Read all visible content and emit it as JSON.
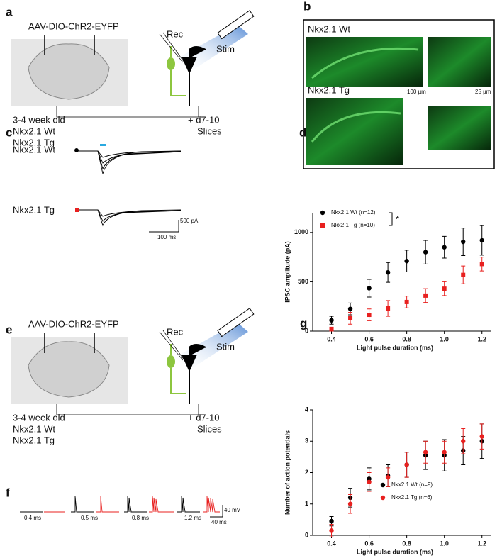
{
  "panel_labels": [
    "a",
    "b",
    "c",
    "d",
    "e",
    "f",
    "g"
  ],
  "schematic_a": {
    "virus": "AAV-DIO-ChR2-EYFP",
    "rec": "Rec",
    "stim": "Stim",
    "age": "3-4 week old",
    "wt": "Nkx2.1 Wt",
    "tg": "Nkx2.1 Tg",
    "days": "+ d7-10",
    "slices": "Slices"
  },
  "schematic_e": {
    "virus": "AAV-DIO-ChR2-EYFP",
    "rec": "Rec",
    "stim": "Stim",
    "age": "3-4 week old",
    "wt": "Nkx2.1 Wt",
    "tg": "Nkx2.1 Tg",
    "days": "+ d7-10",
    "slices": "Slices"
  },
  "panel_b": {
    "wt": "Nkx2.1 Wt",
    "tg": "Nkx2.1 Tg",
    "scale_1": "100 µm",
    "scale_2": "25 µm"
  },
  "panel_c": {
    "wt": "Nkx2.1 Wt",
    "tg": "Nkx2.1 Tg",
    "scale_y": "500 pA",
    "scale_x": "100 ms"
  },
  "panel_f": {
    "durations": [
      "0.4 ms",
      "0.5 ms",
      "0.8 ms",
      "1.2 ms"
    ],
    "scale_y": "40 mV",
    "scale_x": "40 ms"
  },
  "chart_data": [
    {
      "type": "scatter",
      "ylabel": "IPSC amplitude (pA)",
      "xlabel": "Light pulse duration (ms)",
      "x": [
        0.4,
        0.5,
        0.6,
        0.7,
        0.8,
        0.9,
        1.0,
        1.1,
        1.2
      ],
      "xlim": [
        0.3,
        1.25
      ],
      "xticks": [
        0.4,
        0.6,
        0.8,
        {
          "value": 1,
          "label": "1.0"
        },
        1.2
      ],
      "ylim": [
        0,
        1200
      ],
      "yticks": [
        0,
        500,
        1000
      ],
      "significance": "*",
      "series": [
        {
          "name": "Nkx2.1 Wt (n=12)",
          "color": "#000000",
          "marker": "circle",
          "values": [
            110,
            225,
            435,
            595,
            710,
            800,
            850,
            905,
            920
          ],
          "errors": [
            40,
            60,
            90,
            100,
            110,
            120,
            110,
            140,
            150
          ]
        },
        {
          "name": "Nkx2.1 Tg (n=10)",
          "color": "#e8201f",
          "marker": "square",
          "values": [
            20,
            130,
            165,
            230,
            295,
            360,
            430,
            570,
            680
          ],
          "errors": [
            20,
            60,
            60,
            80,
            60,
            70,
            70,
            90,
            70
          ]
        }
      ]
    },
    {
      "type": "scatter",
      "ylabel": "Number of action potentials",
      "xlabel": "Light pulse duration (ms)",
      "x": [
        0.4,
        0.5,
        0.6,
        0.7,
        0.8,
        0.9,
        1.0,
        1.1,
        1.2
      ],
      "xlim": [
        0.3,
        1.25
      ],
      "xticks": [
        0.4,
        0.6,
        0.8,
        {
          "value": 1,
          "label": "1.0"
        },
        1.2
      ],
      "ylim": [
        0,
        4
      ],
      "yticks": [
        0,
        1,
        2,
        3,
        4
      ],
      "series": [
        {
          "name": "Nkx2.1 Wt  (n=9)",
          "color": "#000000",
          "marker": "circle",
          "values": [
            0.45,
            1.2,
            1.8,
            1.9,
            2.25,
            2.55,
            2.55,
            2.7,
            3.0
          ],
          "errors": [
            0.15,
            0.3,
            0.35,
            0.35,
            0.4,
            0.45,
            0.5,
            0.45,
            0.55
          ]
        },
        {
          "name": "Nkx2.1 Tg  (n=6)",
          "color": "#e8201f",
          "marker": "circle",
          "values": [
            0.15,
            1.0,
            1.7,
            1.85,
            2.25,
            2.65,
            2.65,
            3.0,
            3.15
          ],
          "errors": [
            0.2,
            0.3,
            0.3,
            0.3,
            0.4,
            0.35,
            0.35,
            0.4,
            0.4
          ]
        }
      ]
    }
  ]
}
